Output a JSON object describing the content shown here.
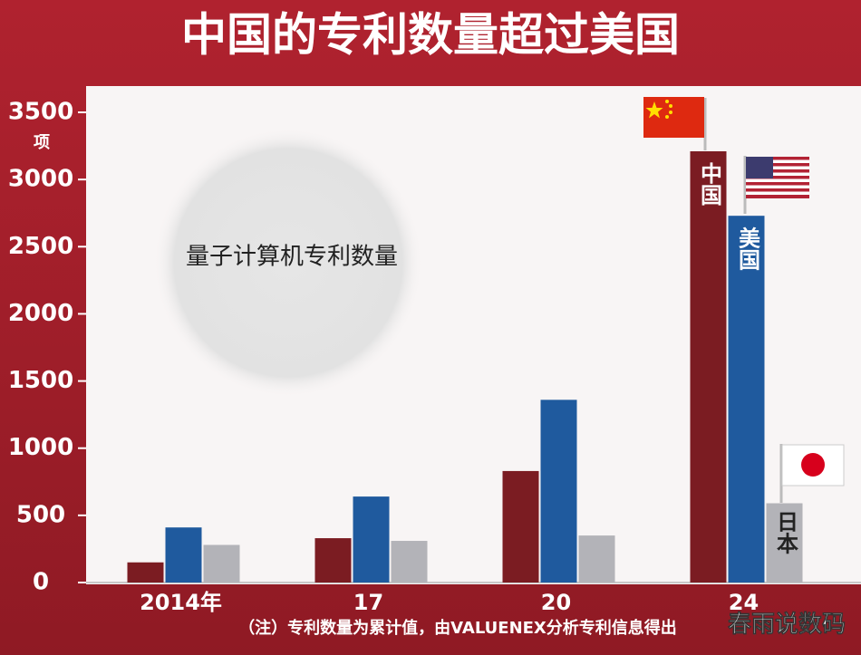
{
  "chart_data": {
    "type": "bar",
    "title": "中国的专利数量超过美国",
    "subtitle": "量子计算机专利数量",
    "y_unit": "项",
    "categories": [
      "2014年",
      "17",
      "20",
      "24"
    ],
    "series": [
      {
        "name": "中国",
        "color": "#7b1c22",
        "values": [
          150,
          330,
          830,
          3210
        ]
      },
      {
        "name": "美国",
        "color": "#1f5a9e",
        "values": [
          410,
          640,
          1360,
          2730
        ]
      },
      {
        "name": "日本",
        "color": "#b3b3b8",
        "values": [
          280,
          310,
          350,
          590
        ]
      }
    ],
    "ylim": [
      0,
      3500
    ],
    "yticks": [
      0,
      500,
      1000,
      1500,
      2000,
      2500,
      3000,
      3500
    ],
    "note": "（注）专利数量为累计值，由VALUENEX分析专利信息得出",
    "watermark": "春雨说数码"
  }
}
